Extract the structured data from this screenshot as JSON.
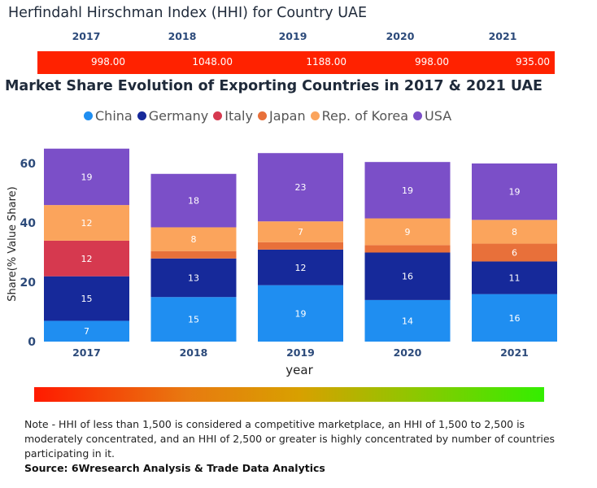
{
  "hhi": {
    "title": "Herfindahl Hirschman Index (HHI) for Country UAE",
    "years": [
      "2017",
      "2018",
      "2019",
      "2020",
      "2021"
    ],
    "values": [
      "998.00",
      "1048.00",
      "1188.00",
      "998.00",
      "935.00"
    ],
    "bar_color": "#ff2200"
  },
  "chart_data": {
    "type": "bar",
    "stacked": true,
    "title": "Market Share Evolution of Exporting Countries in 2017 & 2021 UAE",
    "xlabel": "year",
    "ylabel": "Share(% Value Share)",
    "ylim": [
      0,
      65
    ],
    "yticks": [
      0,
      20,
      40,
      60
    ],
    "legend_position": "top",
    "categories": [
      "2017",
      "2018",
      "2019",
      "2020",
      "2021"
    ],
    "series": [
      {
        "name": "China",
        "color": "#1f8ef1",
        "values": [
          7,
          15,
          19,
          14,
          16
        ],
        "labels": [
          "7",
          "15",
          "19",
          "14",
          "16"
        ]
      },
      {
        "name": "Germany",
        "color": "#16299a",
        "values": [
          15,
          13,
          12,
          16,
          11
        ],
        "labels": [
          "15",
          "13",
          "12",
          "16",
          "11"
        ]
      },
      {
        "name": "Italy",
        "color": "#d6394f",
        "values": [
          12,
          0,
          0,
          0,
          0
        ],
        "labels": [
          "12",
          "",
          "",
          "",
          ""
        ]
      },
      {
        "name": "Japan",
        "color": "#e8703a",
        "values": [
          0,
          2.5,
          2.5,
          2.5,
          6
        ],
        "labels": [
          "",
          "",
          "",
          "",
          "6"
        ]
      },
      {
        "name": "Rep. of Korea",
        "color": "#fba45c",
        "values": [
          12,
          8,
          7,
          9,
          8
        ],
        "labels": [
          "12",
          "8",
          "7",
          "9",
          "8"
        ]
      },
      {
        "name": "USA",
        "color": "#7b4fc8",
        "values": [
          19,
          18,
          23,
          19,
          19
        ],
        "labels": [
          "19",
          "18",
          "23",
          "19",
          "19"
        ]
      }
    ]
  },
  "gradient": {
    "start_color": "#ff1a00",
    "end_color": "#33ee00"
  },
  "note": "Note - HHI of less than 1,500 is considered a competitive marketplace, an HHI of 1,500 to 2,500 is moderately concentrated, and an HHI of 2,500 or greater is highly concentrated by number of countries participating in it.",
  "source": "Source: 6Wresearch Analysis & Trade Data Analytics"
}
